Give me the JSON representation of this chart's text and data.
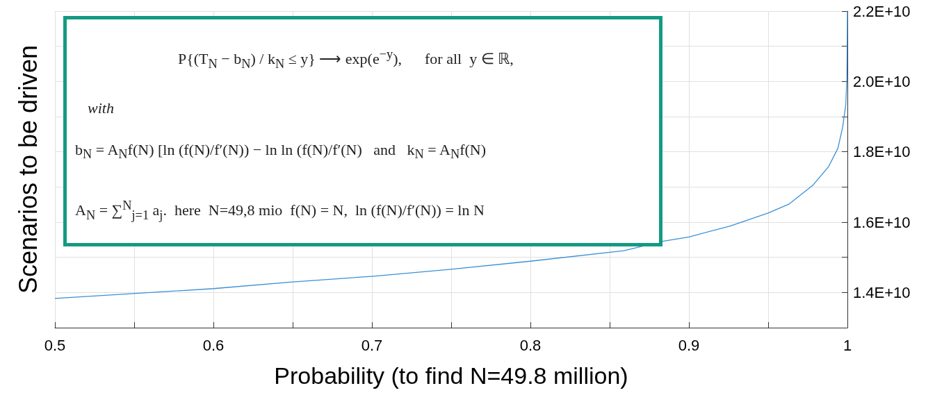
{
  "chart_data": {
    "type": "line",
    "xlabel": "Probability (to find N=49.8 million)",
    "ylabel": "Scenarios to be driven",
    "annotations": [
      "P{(T$_{N}$ − b$_{N}$) / k$_{N}$ ≤ y} ⟶ exp(e$^{−y}$),      for all  y ∈ ℝ,",
      "with",
      "b$_{N}$ = A$_{N}$f(N) [ln (f(N)/f′(N)) − ln ln (f(N)/f′(N)   and   k$_{N}$ = A$_{N}$f(N)",
      "A$_{N}$ = ∑$^{N}$$_{j=1}$ a$_{j}$.  here  N=49,8 mio  f(N) = N,  ln (f(N)/f′(N)) = ln N"
    ],
    "series": [
      {
        "color": "#3a8fd6",
        "x": [
          0.5,
          0.6,
          0.65,
          0.7,
          0.75,
          0.8,
          0.859,
          0.884,
          0.9,
          0.926,
          0.95,
          0.963,
          0.978,
          0.988,
          0.994,
          0.997,
          0.999,
          0.9997,
          0.9999,
          1.0
        ],
        "values": [
          13830000000.0,
          14110000000.0,
          14300000000.0,
          14460000000.0,
          14660000000.0,
          14890000000.0,
          15190000000.0,
          15460000000.0,
          15580000000.0,
          15890000000.0,
          16260000000.0,
          16510000000.0,
          17040000000.0,
          17570000000.0,
          18100000000.0,
          18700000000.0,
          19350000000.0,
          20150000000.0,
          21300000000.0,
          22000000000.0
        ]
      }
    ],
    "xlim": [
      0.5,
      1
    ],
    "xticks": [
      0.5,
      {
        "value": 0.55,
        "label": null
      },
      0.6,
      {
        "value": 0.65,
        "label": null
      },
      0.7,
      {
        "value": 0.75,
        "label": null
      },
      0.8,
      {
        "value": 0.85,
        "label": null
      },
      0.9,
      {
        "value": 0.95,
        "label": null
      },
      1
    ],
    "ylim": [
      13000000000.0,
      22000000000.0
    ],
    "yticks": [
      {
        "value": 13000000000.0,
        "label": null
      },
      {
        "value": 14000000000.0,
        "label": "1.4E+10"
      },
      {
        "value": 15000000000.0,
        "label": null
      },
      {
        "value": 16000000000.0,
        "label": "1.6E+10"
      },
      {
        "value": 17000000000.0,
        "label": null
      },
      {
        "value": 18000000000.0,
        "label": "1.8E+10"
      },
      {
        "value": 19000000000.0,
        "label": null
      },
      {
        "value": 20000000000.0,
        "label": "2.0E+10"
      },
      {
        "value": 21000000000.0,
        "label": null
      },
      {
        "value": 22000000000.0,
        "label": "2.2E+10"
      }
    ],
    "grid": true,
    "marker": "none",
    "line_style": "solid"
  }
}
